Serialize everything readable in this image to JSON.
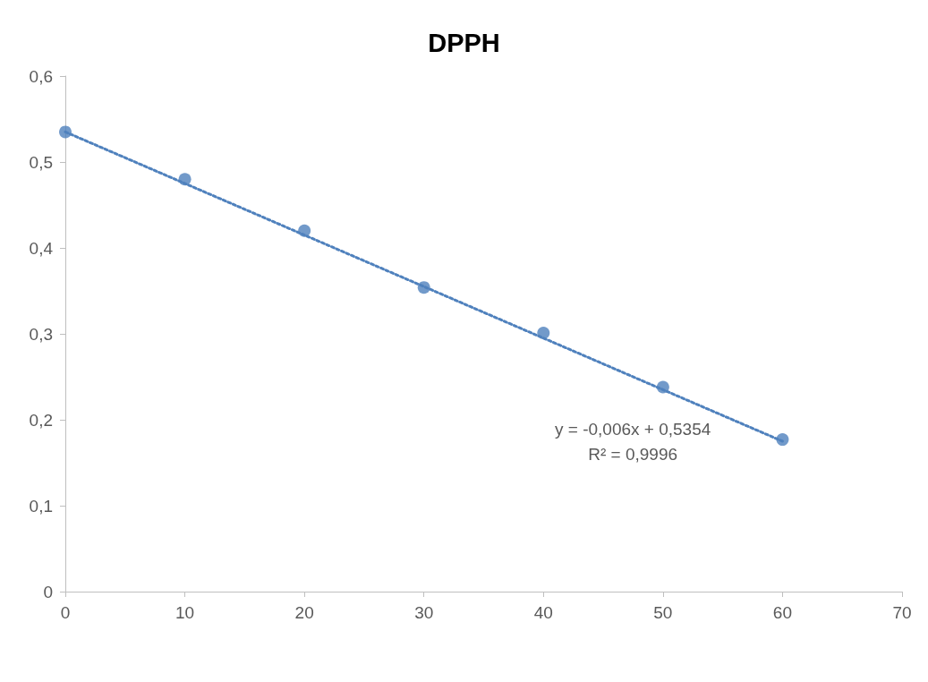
{
  "chart_data": {
    "type": "scatter",
    "title": "DPPH",
    "x": [
      0,
      10,
      20,
      30,
      40,
      50,
      60
    ],
    "series": [
      {
        "color": "#4f81bd",
        "marker": "circle",
        "values": [
          0.535,
          0.48,
          0.42,
          0.354,
          0.301,
          0.238,
          0.177
        ]
      },
      {
        "type": "line",
        "color": "#4f81bd",
        "line_style": "dotted",
        "marker": "none",
        "x": [
          0,
          60
        ],
        "values": [
          0.535,
          0.175
        ]
      }
    ],
    "xlim": [
      0,
      70
    ],
    "xticks": [
      0,
      10,
      20,
      30,
      40,
      50,
      60,
      70
    ],
    "ylim": [
      0,
      0.6
    ],
    "yticks": [
      {
        "value": 0,
        "label": "0"
      },
      {
        "value": 0.1,
        "label": "0,1"
      },
      {
        "value": 0.2,
        "label": "0,2"
      },
      {
        "value": 0.3,
        "label": "0,3"
      },
      {
        "value": 0.4,
        "label": "0,4"
      },
      {
        "value": 0.5,
        "label": "0,5"
      },
      {
        "value": 0.6,
        "label": "0,6"
      }
    ],
    "grid": false,
    "annotations": [
      "y = -0,006x + 0,5354\nR² = 0,9996"
    ]
  }
}
